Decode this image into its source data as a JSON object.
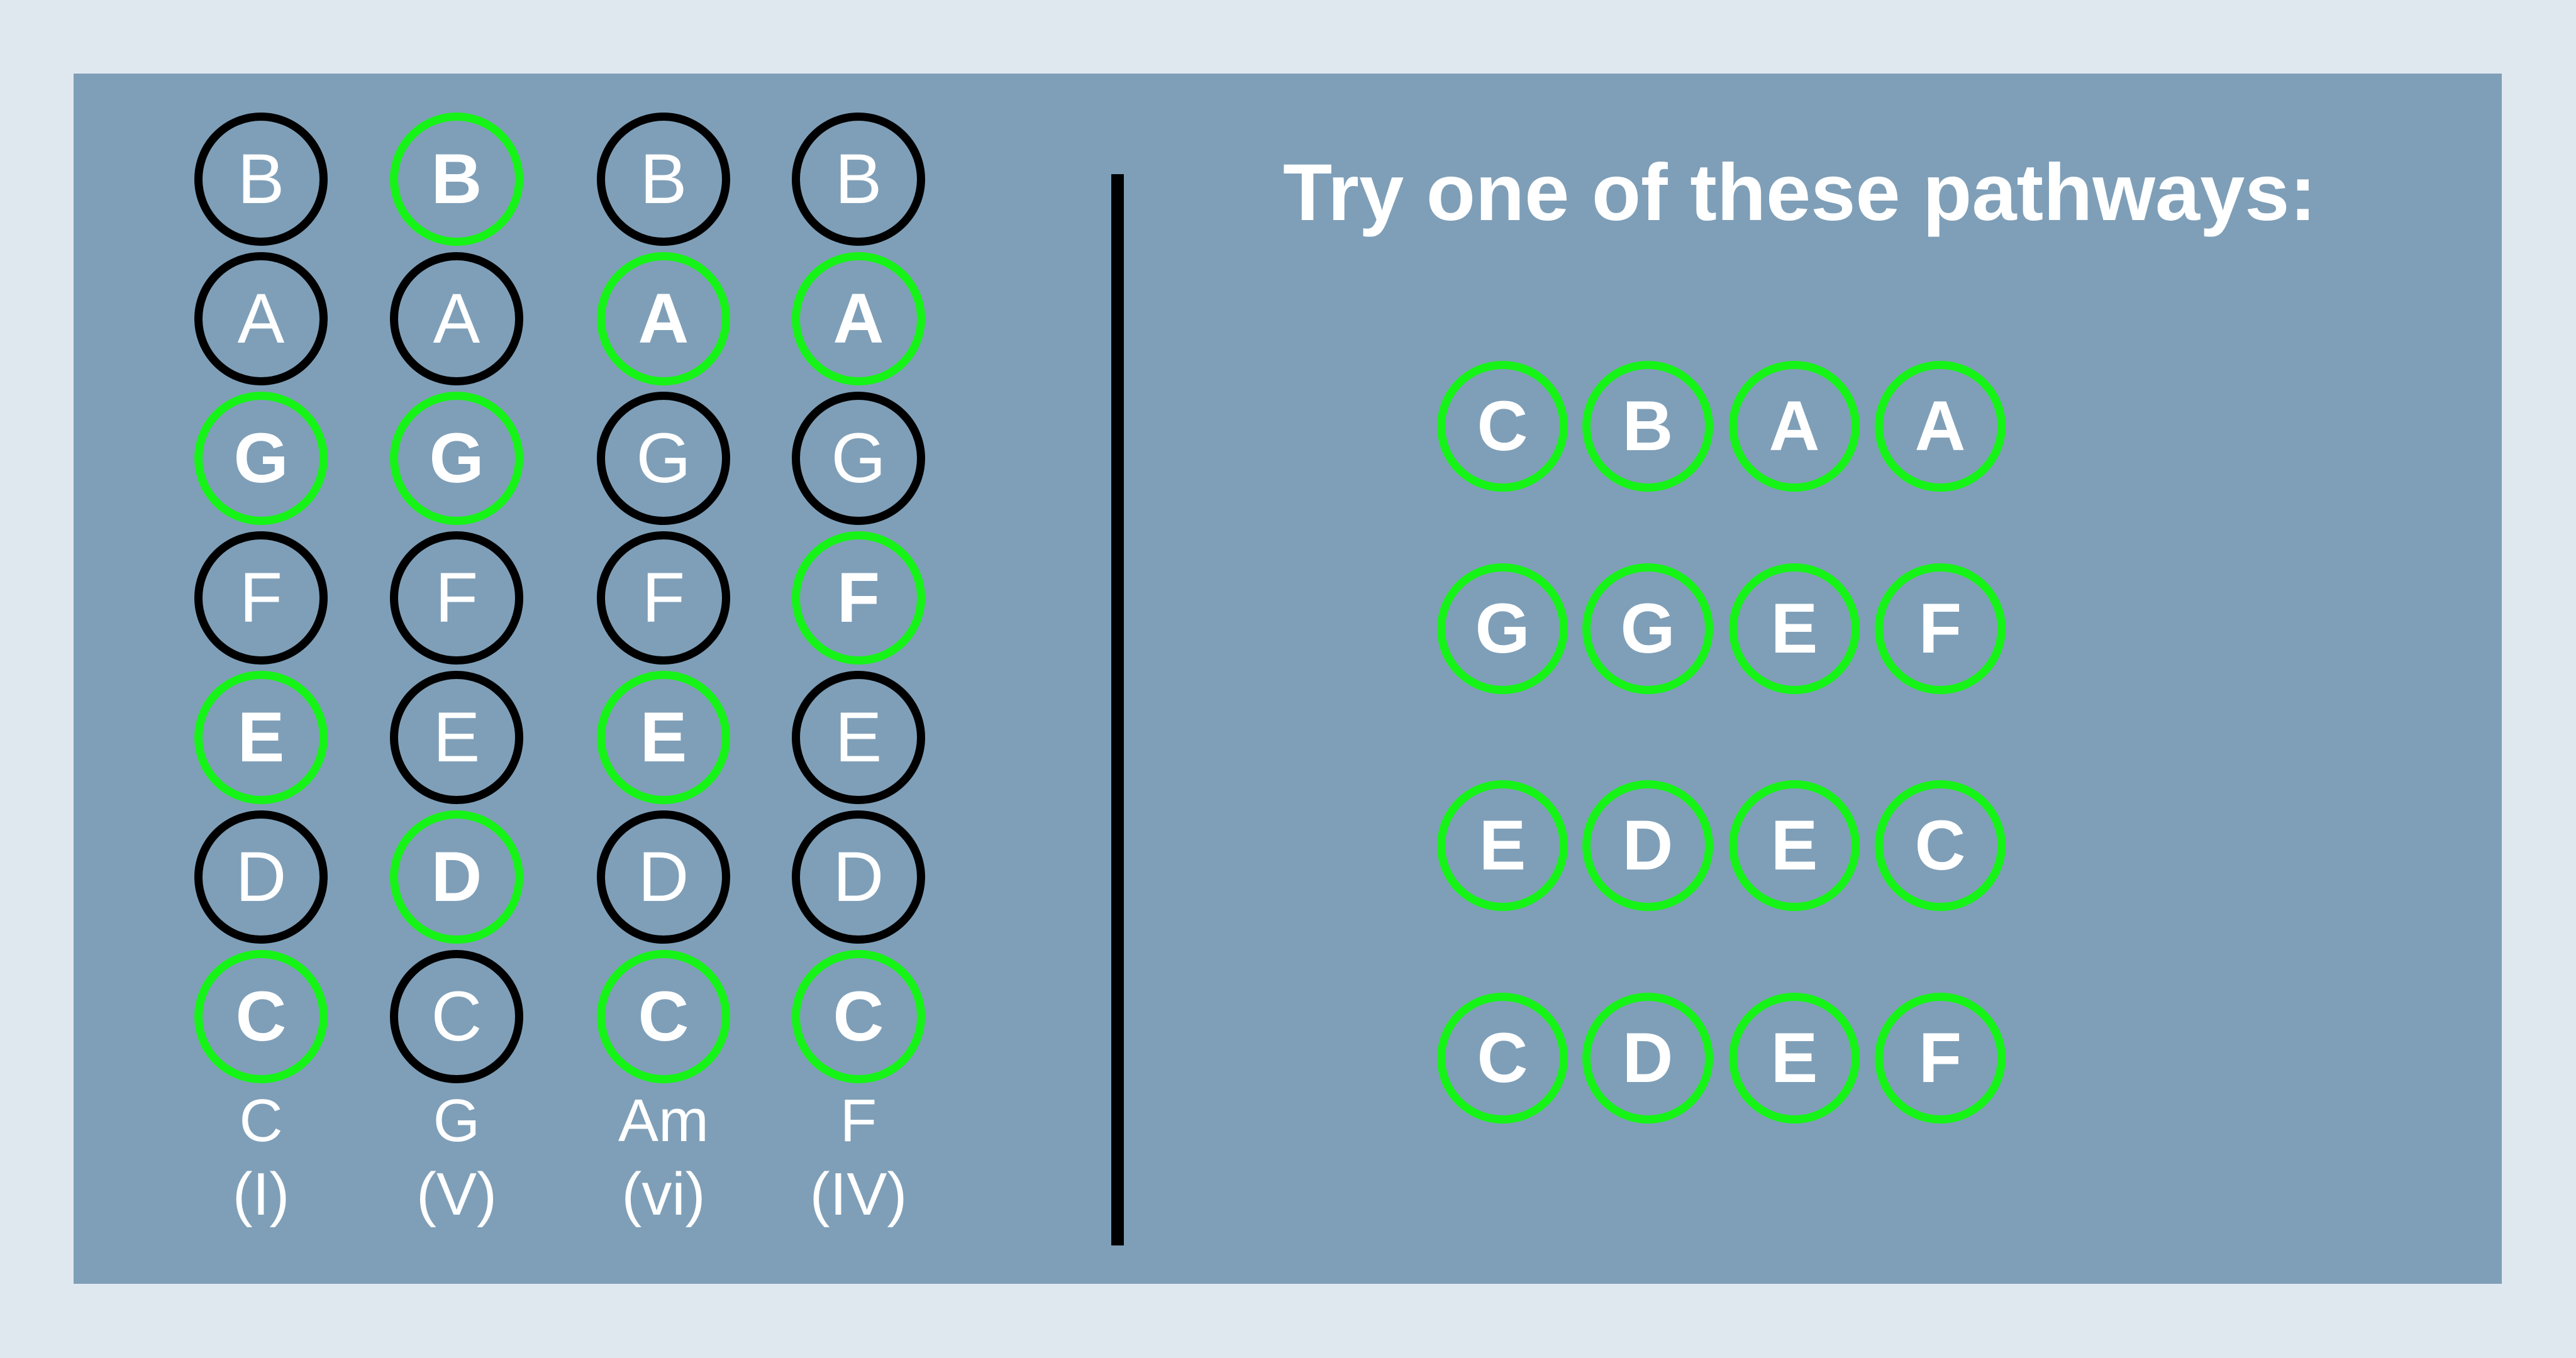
{
  "heading": "Try one of these pathways:",
  "colors": {
    "background": "#e0e8ef",
    "panel": "#7f9fb8",
    "highlight": "#16f316",
    "outline": "#000000",
    "text": "#ffffff"
  },
  "chords": [
    {
      "name": "C",
      "numeral": "(I)",
      "notes": [
        {
          "note": "B",
          "in_chord": false
        },
        {
          "note": "A",
          "in_chord": false
        },
        {
          "note": "G",
          "in_chord": true
        },
        {
          "note": "F",
          "in_chord": false
        },
        {
          "note": "E",
          "in_chord": true
        },
        {
          "note": "D",
          "in_chord": false
        },
        {
          "note": "C",
          "in_chord": true
        }
      ]
    },
    {
      "name": "G",
      "numeral": "(V)",
      "notes": [
        {
          "note": "B",
          "in_chord": true
        },
        {
          "note": "A",
          "in_chord": false
        },
        {
          "note": "G",
          "in_chord": true
        },
        {
          "note": "F",
          "in_chord": false
        },
        {
          "note": "E",
          "in_chord": false
        },
        {
          "note": "D",
          "in_chord": true
        },
        {
          "note": "C",
          "in_chord": false
        }
      ]
    },
    {
      "name": "Am",
      "numeral": "(vi)",
      "notes": [
        {
          "note": "B",
          "in_chord": false
        },
        {
          "note": "A",
          "in_chord": true
        },
        {
          "note": "G",
          "in_chord": false
        },
        {
          "note": "F",
          "in_chord": false
        },
        {
          "note": "E",
          "in_chord": true
        },
        {
          "note": "D",
          "in_chord": false
        },
        {
          "note": "C",
          "in_chord": true
        }
      ]
    },
    {
      "name": "F",
      "numeral": "(IV)",
      "notes": [
        {
          "note": "B",
          "in_chord": false
        },
        {
          "note": "A",
          "in_chord": true
        },
        {
          "note": "G",
          "in_chord": false
        },
        {
          "note": "F",
          "in_chord": true
        },
        {
          "note": "E",
          "in_chord": false
        },
        {
          "note": "D",
          "in_chord": false
        },
        {
          "note": "C",
          "in_chord": true
        }
      ]
    }
  ],
  "pathways": [
    [
      "C",
      "B",
      "A",
      "A"
    ],
    [
      "G",
      "G",
      "E",
      "F"
    ],
    [
      "E",
      "D",
      "E",
      "C"
    ],
    [
      "C",
      "D",
      "E",
      "F"
    ]
  ]
}
